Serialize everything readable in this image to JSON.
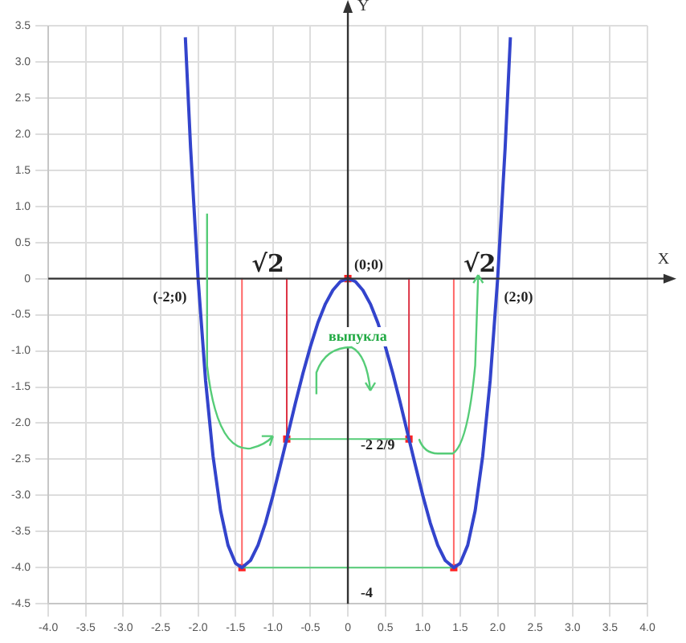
{
  "chart_data": {
    "type": "line",
    "xlabel": "X",
    "ylabel": "Y",
    "xlim": [
      -4,
      4
    ],
    "ylim": [
      -4.5,
      3.5
    ],
    "xticks": [
      {
        "value": -4,
        "label": "-4.0"
      },
      -3.5,
      {
        "value": -3,
        "label": "-3.0"
      },
      -2.5,
      {
        "value": -2,
        "label": "-2.0"
      },
      -1.5,
      {
        "value": -1,
        "label": "-1.0"
      },
      -0.5,
      0,
      0.5,
      {
        "value": 1,
        "label": "1.0"
      },
      1.5,
      {
        "value": 2,
        "label": "2.0"
      },
      2.5,
      {
        "value": 3,
        "label": "3.0"
      },
      3.5,
      {
        "value": 4,
        "label": "4.0"
      }
    ],
    "yticks": [
      -4.5,
      {
        "value": -4,
        "label": "-4.0"
      },
      -3.5,
      {
        "value": -3,
        "label": "-3.0"
      },
      -2.5,
      {
        "value": -2,
        "label": "-2.0"
      },
      -1.5,
      {
        "value": -1,
        "label": "-1.0"
      },
      -0.5,
      0,
      0.5,
      {
        "value": 1,
        "label": "1.0"
      },
      1.5,
      {
        "value": 2,
        "label": "2.0"
      },
      2.5,
      {
        "value": 3,
        "label": "3.0"
      },
      3.5
    ],
    "grid": true,
    "legend": false,
    "marker": "none",
    "line_style": "solid",
    "series": [
      {
        "color": "#3344cc",
        "x": [
          -2.17,
          -2.1,
          -2.0,
          -1.9,
          -1.8,
          -1.7,
          -1.6,
          -1.5,
          -1.414,
          -1.3,
          -1.2,
          -1.1,
          -1.0,
          -0.9,
          -0.816,
          -0.7,
          -0.6,
          -0.5,
          -0.4,
          -0.3,
          -0.2,
          -0.1,
          0,
          0.1,
          0.2,
          0.3,
          0.4,
          0.5,
          0.6,
          0.7,
          0.816,
          0.9,
          1.0,
          1.1,
          1.2,
          1.3,
          1.414,
          1.5,
          1.6,
          1.7,
          1.8,
          1.9,
          2.0,
          2.1,
          2.17
        ],
        "values": [
          3.34,
          1.81,
          0,
          -1.41,
          -2.46,
          -3.21,
          -3.69,
          -3.94,
          -4,
          -3.9,
          -3.69,
          -3.38,
          -3,
          -2.58,
          -2.22,
          -1.72,
          -1.31,
          -0.94,
          -0.61,
          -0.35,
          -0.16,
          -0.04,
          0,
          -0.04,
          -0.16,
          -0.35,
          -0.61,
          -0.94,
          -1.31,
          -1.72,
          -2.22,
          -2.58,
          -3,
          -3.38,
          -3.69,
          -3.9,
          -4,
          -3.94,
          -3.69,
          -3.21,
          -2.46,
          -1.41,
          0,
          1.81,
          3.34
        ]
      },
      {
        "color": "#ff6666",
        "x": [
          -1.414,
          -1.414
        ],
        "values": [
          0,
          -4
        ]
      },
      {
        "color": "#ff6666",
        "x": [
          1.414,
          1.414
        ],
        "values": [
          0,
          -4
        ]
      },
      {
        "color": "#dd3344",
        "x": [
          -0.816,
          -0.816
        ],
        "values": [
          0,
          -2.22
        ]
      },
      {
        "color": "#dd3344",
        "x": [
          0.816,
          0.816
        ],
        "values": [
          0,
          -2.22
        ]
      },
      {
        "color": "#55cc77",
        "x": [
          -1.414,
          1.414
        ],
        "values": [
          -4,
          -4
        ]
      },
      {
        "color": "#55cc77",
        "x": [
          -0.816,
          0.816
        ],
        "values": [
          -2.22,
          -2.22
        ]
      },
      {
        "type": "scatter",
        "marker": "square",
        "color": "#ff2222",
        "x": [
          -1.414,
          -0.816,
          0,
          0.816,
          1.414
        ],
        "values": [
          -4,
          -2.22,
          0,
          -2.22,
          -4
        ]
      }
    ],
    "annotations": [
      {
        "text": "(-2;0)",
        "x": -2,
        "y": 0
      },
      {
        "text": "(0;0)",
        "x": 0,
        "y": 0
      },
      {
        "text": "(2;0)",
        "x": 2,
        "y": 0
      },
      {
        "text": "√2",
        "x": -1.414,
        "y": 0
      },
      {
        "text": "√2",
        "x": 1.414,
        "y": 0
      },
      "выпукла",
      {
        "text": "-2 2/9",
        "x": 0,
        "y": -2.22
      },
      {
        "text": "-4",
        "x": 0,
        "y": -4
      }
    ]
  }
}
